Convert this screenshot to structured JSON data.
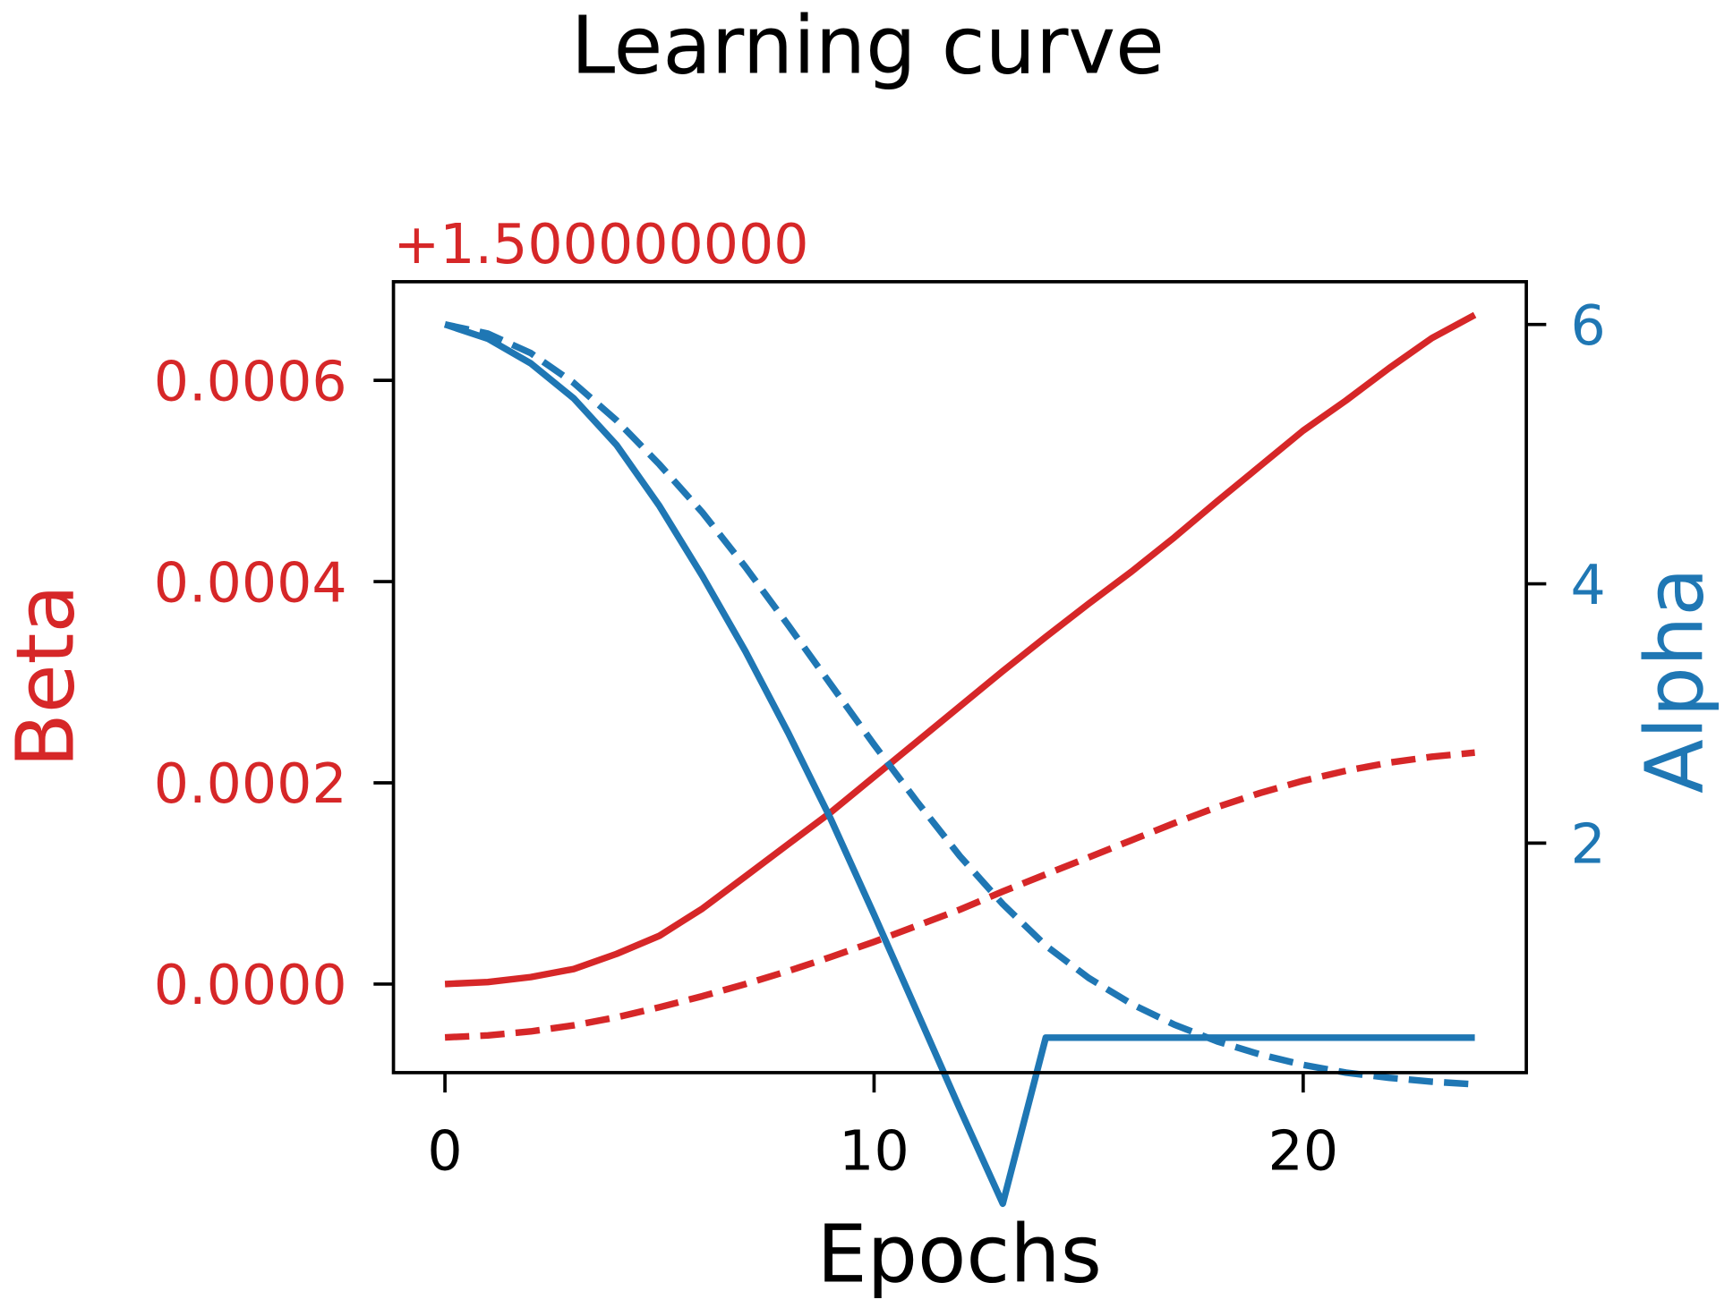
{
  "colors": {
    "beta": "#d62728",
    "alpha": "#1f77b4",
    "axis": "#000000",
    "background": "#ffffff"
  },
  "chart_data": {
    "type": "line",
    "title": "Learning curve",
    "xlabel": "Epochs",
    "ylabel_left": "Beta",
    "ylabel_right": "Alpha",
    "left_axis_offset_text": "+1.500000000",
    "x": [
      0,
      1,
      2,
      3,
      4,
      5,
      6,
      7,
      8,
      9,
      10,
      11,
      12,
      13,
      14,
      15,
      16,
      17,
      18,
      19,
      20,
      21,
      22,
      23,
      24
    ],
    "x_ticks": [
      "0",
      "10",
      "20"
    ],
    "x_tick_values": [
      0,
      10,
      20
    ],
    "xlim": [
      -1.2,
      25.2
    ],
    "left_ticks": [
      "0.0000",
      "0.0002",
      "0.0004",
      "0.0006"
    ],
    "left_tick_values": [
      0.0,
      0.0002,
      0.0004,
      0.0006
    ],
    "left_ylim": [
      -8.8e-05,
      0.000698
    ],
    "right_ticks": [
      "2",
      "4",
      "6"
    ],
    "right_tick_values": [
      2,
      4,
      6
    ],
    "right_ylim": [
      0.23,
      6.33
    ],
    "grid": false,
    "legend": null,
    "series": [
      {
        "name": "Beta (solid)",
        "axis": "left",
        "style": "solid",
        "color": "#d62728",
        "values": [
          0.0,
          2e-06,
          7e-06,
          1.5e-05,
          3e-05,
          4.8e-05,
          7.5e-05,
          0.000107,
          0.000139,
          0.000171,
          0.000206,
          0.000241,
          0.000276,
          0.000311,
          0.000345,
          0.000378,
          0.00041,
          0.000444,
          0.00048,
          0.000515,
          0.00055,
          0.00058,
          0.000612,
          0.000642,
          0.000665
        ]
      },
      {
        "name": "Beta (dashed)",
        "axis": "left",
        "style": "dashed",
        "color": "#d62728",
        "values": [
          -5.3e-05,
          -5.1e-05,
          -4.7e-05,
          -4.1e-05,
          -3.3e-05,
          -2.3e-05,
          -1.2e-05,
          0.0,
          1.3e-05,
          2.7e-05,
          4.2e-05,
          5.8e-05,
          7.4e-05,
          9.2e-05,
          0.000109,
          0.000126,
          0.000143,
          0.00016,
          0.000176,
          0.00019,
          0.000202,
          0.000212,
          0.00022,
          0.000226,
          0.00023
        ]
      },
      {
        "name": "Alpha (solid)",
        "axis": "right",
        "style": "solid",
        "color": "#1f77b4",
        "values": [
          6.0,
          5.89,
          5.7,
          5.43,
          5.07,
          4.6,
          4.06,
          3.48,
          2.85,
          2.18,
          1.45,
          0.7,
          -0.05,
          -0.78,
          0.5,
          0.5,
          0.5,
          0.5,
          0.5,
          0.5,
          0.5,
          0.5,
          0.5,
          0.5,
          0.5
        ]
      },
      {
        "name": "Alpha (dashed)",
        "axis": "right",
        "style": "dashed",
        "color": "#1f77b4",
        "values": [
          6.0,
          5.93,
          5.78,
          5.55,
          5.26,
          4.92,
          4.55,
          4.13,
          3.68,
          3.22,
          2.76,
          2.32,
          1.9,
          1.53,
          1.21,
          0.96,
          0.76,
          0.6,
          0.47,
          0.37,
          0.29,
          0.23,
          0.19,
          0.16,
          0.14
        ]
      }
    ]
  }
}
